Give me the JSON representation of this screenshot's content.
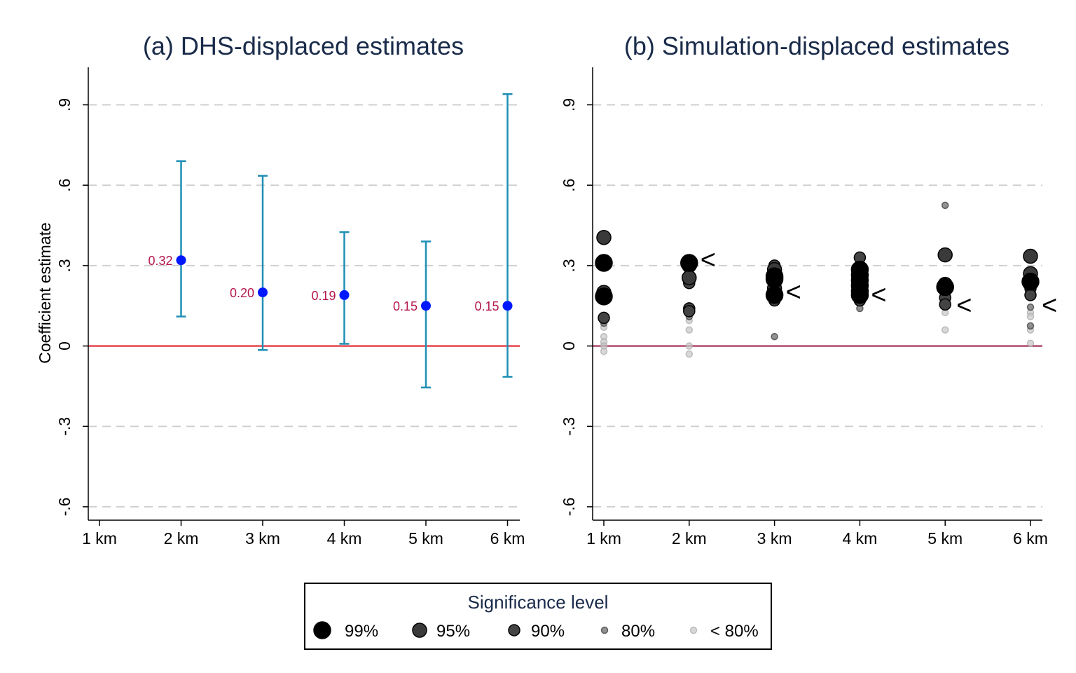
{
  "chart_data": [
    {
      "type": "scatter",
      "title": "(a) DHS-displaced estimates",
      "ylabel": "Coefficient estimate",
      "xlabel": "",
      "categories": [
        "1 km",
        "2 km",
        "3 km",
        "4 km",
        "5 km",
        "6 km"
      ],
      "ylim": [
        -0.65,
        1.04
      ],
      "yticks": [
        -0.6,
        -0.3,
        0,
        0.3,
        0.6,
        0.9
      ],
      "yticklabels": [
        "-.6",
        "-.3",
        "0",
        ".3",
        ".6",
        ".9"
      ],
      "grid": "dashed horizontal",
      "reference_line": 0,
      "series": [
        {
          "x": [
            "2 km",
            "3 km",
            "4 km",
            "5 km",
            "6 km"
          ],
          "y": [
            0.32,
            0.2,
            0.19,
            0.15,
            0.15
          ],
          "labels": [
            "0.32",
            "0.20",
            "0.19",
            "0.15",
            "0.15"
          ],
          "ci_low": [
            0.11,
            -0.015,
            0.008,
            -0.155,
            -0.115
          ],
          "ci_high": [
            0.69,
            0.635,
            0.425,
            0.39,
            0.94
          ]
        }
      ],
      "colors": {
        "point": "#0018ff",
        "ci": "#1f8fb5",
        "label": "#b5174b",
        "zero_line": "#e0202c"
      }
    },
    {
      "type": "scatter",
      "title": "(b) Simulation-displaced estimates",
      "xlabel": "",
      "ylabel": "",
      "categories": [
        "1 km",
        "2 km",
        "3 km",
        "4 km",
        "5 km",
        "6 km"
      ],
      "ylim": [
        -0.65,
        1.04
      ],
      "yticks": [
        -0.6,
        -0.3,
        0,
        0.3,
        0.6,
        0.9
      ],
      "yticklabels": [
        "-.6",
        "-.3",
        "0",
        ".3",
        ".6",
        ".9"
      ],
      "grid": "dashed horizontal",
      "reference_line": 0,
      "marker": "<",
      "marker_positions": [
        {
          "x": "2 km",
          "y": 0.32
        },
        {
          "x": "3 km",
          "y": 0.2
        },
        {
          "x": "4 km",
          "y": 0.19
        },
        {
          "x": "5 km",
          "y": 0.15
        },
        {
          "x": "6 km",
          "y": 0.15
        }
      ],
      "points": [
        {
          "x": "1 km",
          "y": 0.405,
          "level": "95%"
        },
        {
          "x": "1 km",
          "y": 0.31,
          "level": "99%"
        },
        {
          "x": "1 km",
          "y": 0.2,
          "level": "95%"
        },
        {
          "x": "1 km",
          "y": 0.185,
          "level": "99%"
        },
        {
          "x": "1 km",
          "y": 0.105,
          "level": "90%"
        },
        {
          "x": "1 km",
          "y": 0.085,
          "level": "80%"
        },
        {
          "x": "1 km",
          "y": 0.07,
          "level": "<80%"
        },
        {
          "x": "1 km",
          "y": 0.035,
          "level": "<80%"
        },
        {
          "x": "1 km",
          "y": 0.015,
          "level": "<80%"
        },
        {
          "x": "1 km",
          "y": 0.0,
          "level": "<80%"
        },
        {
          "x": "1 km",
          "y": -0.02,
          "level": "<80%"
        },
        {
          "x": "2 km",
          "y": 0.31,
          "level": "99%"
        },
        {
          "x": "2 km",
          "y": 0.3,
          "level": "95%"
        },
        {
          "x": "2 km",
          "y": 0.255,
          "level": "95%"
        },
        {
          "x": "2 km",
          "y": 0.235,
          "level": "90%"
        },
        {
          "x": "2 km",
          "y": 0.15,
          "level": "80%"
        },
        {
          "x": "2 km",
          "y": 0.14,
          "level": "90%"
        },
        {
          "x": "2 km",
          "y": 0.13,
          "level": "90%"
        },
        {
          "x": "2 km",
          "y": 0.11,
          "level": "80%"
        },
        {
          "x": "2 km",
          "y": 0.095,
          "level": "<80%"
        },
        {
          "x": "2 km",
          "y": 0.06,
          "level": "<80%"
        },
        {
          "x": "2 km",
          "y": 0.0,
          "level": "<80%"
        },
        {
          "x": "2 km",
          "y": -0.03,
          "level": "<80%"
        },
        {
          "x": "3 km",
          "y": 0.3,
          "level": "90%"
        },
        {
          "x": "3 km",
          "y": 0.285,
          "level": "95%"
        },
        {
          "x": "3 km",
          "y": 0.26,
          "level": "99%"
        },
        {
          "x": "3 km",
          "y": 0.25,
          "level": "99%"
        },
        {
          "x": "3 km",
          "y": 0.215,
          "level": "95%"
        },
        {
          "x": "3 km",
          "y": 0.19,
          "level": "99%"
        },
        {
          "x": "3 km",
          "y": 0.17,
          "level": "90%"
        },
        {
          "x": "3 km",
          "y": 0.035,
          "level": "80%"
        },
        {
          "x": "4 km",
          "y": 0.33,
          "level": "90%"
        },
        {
          "x": "4 km",
          "y": 0.285,
          "level": "99%"
        },
        {
          "x": "4 km",
          "y": 0.265,
          "level": "99%"
        },
        {
          "x": "4 km",
          "y": 0.245,
          "level": "99%"
        },
        {
          "x": "4 km",
          "y": 0.225,
          "level": "99%"
        },
        {
          "x": "4 km",
          "y": 0.205,
          "level": "99%"
        },
        {
          "x": "4 km",
          "y": 0.19,
          "level": "99%"
        },
        {
          "x": "4 km",
          "y": 0.17,
          "level": "90%"
        },
        {
          "x": "4 km",
          "y": 0.14,
          "level": "80%"
        },
        {
          "x": "5 km",
          "y": 0.525,
          "level": "80%"
        },
        {
          "x": "5 km",
          "y": 0.34,
          "level": "95%"
        },
        {
          "x": "5 km",
          "y": 0.23,
          "level": "95%"
        },
        {
          "x": "5 km",
          "y": 0.22,
          "level": "99%"
        },
        {
          "x": "5 km",
          "y": 0.18,
          "level": "90%"
        },
        {
          "x": "5 km",
          "y": 0.155,
          "level": "90%"
        },
        {
          "x": "5 km",
          "y": 0.125,
          "level": "<80%"
        },
        {
          "x": "5 km",
          "y": 0.06,
          "level": "<80%"
        },
        {
          "x": "6 km",
          "y": 0.335,
          "level": "95%"
        },
        {
          "x": "6 km",
          "y": 0.27,
          "level": "95%"
        },
        {
          "x": "6 km",
          "y": 0.24,
          "level": "99%"
        },
        {
          "x": "6 km",
          "y": 0.215,
          "level": "90%"
        },
        {
          "x": "6 km",
          "y": 0.19,
          "level": "90%"
        },
        {
          "x": "6 km",
          "y": 0.145,
          "level": "80%"
        },
        {
          "x": "6 km",
          "y": 0.125,
          "level": "<80%"
        },
        {
          "x": "6 km",
          "y": 0.11,
          "level": "<80%"
        },
        {
          "x": "6 km",
          "y": 0.075,
          "level": "80%"
        },
        {
          "x": "6 km",
          "y": 0.06,
          "level": "<80%"
        },
        {
          "x": "6 km",
          "y": 0.01,
          "level": "<80%"
        }
      ],
      "colors": {
        "zero_line": "#a0264c"
      }
    }
  ],
  "legend": {
    "title": "Significance level",
    "placement": "bottom-center",
    "items": [
      {
        "label": "99%",
        "level": "99%"
      },
      {
        "label": "95%",
        "level": "95%"
      },
      {
        "label": "90%",
        "level": "90%"
      },
      {
        "label": "80%",
        "level": "80%"
      },
      {
        "label": "< 80%",
        "level": "<80%"
      }
    ]
  },
  "marker_styles": {
    "99%": {
      "fill": "#000000",
      "stroke": "#000000",
      "opacity": 1.0
    },
    "95%": {
      "fill": "#3a3a3a",
      "stroke": "#000000",
      "opacity": 1.0
    },
    "90%": {
      "fill": "#444444",
      "stroke": "#000000",
      "opacity": 1.0
    },
    "80%": {
      "fill": "#777777",
      "stroke": "#444444",
      "opacity": 0.8
    },
    "<80%": {
      "fill": "#c8c8c8",
      "stroke": "#a8a8a8",
      "opacity": 0.7
    }
  }
}
